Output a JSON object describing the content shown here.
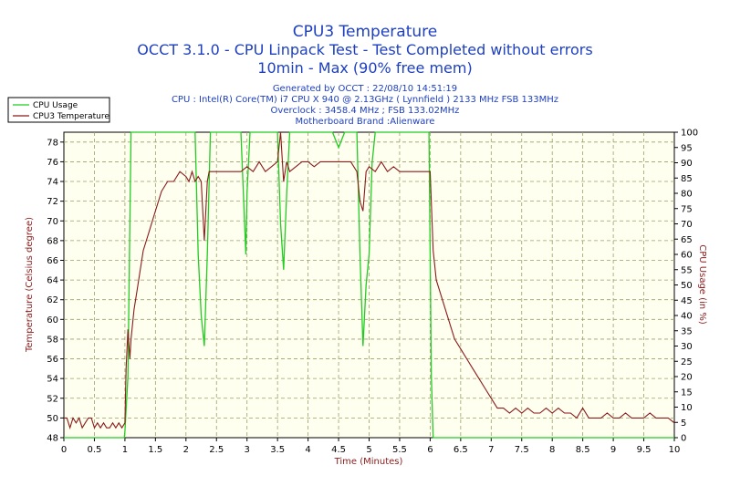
{
  "header": {
    "title": "CPU3 Temperature",
    "subtitle1": "OCCT 3.1.0 - CPU Linpack Test - Test Completed without errors",
    "subtitle2": "10min - Max (90% free mem)"
  },
  "info": {
    "line1": "Generated by OCCT : 22/08/10 14:51:19",
    "line2": "CPU : Intel(R) Core(TM) i7 CPU X 940 @ 2.13GHz ( Lynnfield ) 2133 MHz FSB 133MHz",
    "line3": "Overclock : 3458.4 MHz ; FSB 133.02MHz",
    "line4": "Motherboard Brand :Alienware"
  },
  "legend": {
    "items": [
      {
        "label": "CPU Usage",
        "color": "#22cc22"
      },
      {
        "label": "CPU3 Temperature",
        "color": "#8b1a1a"
      }
    ]
  },
  "colors": {
    "title": "#1d3fc0",
    "plot_bg": "#fffff0",
    "grid": "#9aa06a",
    "temperature": "#8b1a1a",
    "usage": "#22cc22"
  },
  "chart_data": {
    "type": "line",
    "title": "CPU3 Temperature",
    "xlabel": "Time (Minutes)",
    "ylabel": "Temperature (Celsius degree)",
    "y2label": "CPU Usage (in %)",
    "xlim": [
      0,
      10
    ],
    "ylim": [
      48,
      79
    ],
    "y2lim": [
      0,
      100
    ],
    "grid": true,
    "legend_position": "top-left",
    "x_ticks": [
      "0",
      "0.5",
      "1",
      "1.5",
      "2",
      "2.5",
      "3",
      "3.5",
      "4",
      "4.5",
      "5",
      "5.5",
      "6",
      "6.5",
      "7",
      "7.5",
      "8",
      "8.5",
      "9",
      "9.5",
      "10"
    ],
    "y_ticks": [
      "48",
      "50",
      "52",
      "54",
      "56",
      "58",
      "60",
      "62",
      "64",
      "66",
      "68",
      "70",
      "72",
      "74",
      "76",
      "78"
    ],
    "y2_ticks": [
      "0",
      "5",
      "10",
      "15",
      "20",
      "25",
      "30",
      "35",
      "40",
      "45",
      "50",
      "55",
      "60",
      "65",
      "70",
      "75",
      "80",
      "85",
      "90",
      "95",
      "100"
    ],
    "series": [
      {
        "name": "CPU3 Temperature",
        "axis": "left",
        "x": [
          0,
          0.05,
          0.1,
          0.15,
          0.2,
          0.25,
          0.3,
          0.35,
          0.4,
          0.45,
          0.5,
          0.55,
          0.6,
          0.65,
          0.7,
          0.75,
          0.8,
          0.85,
          0.9,
          0.95,
          1.0,
          1.02,
          1.05,
          1.08,
          1.1,
          1.15,
          1.2,
          1.3,
          1.4,
          1.5,
          1.6,
          1.7,
          1.8,
          1.9,
          2.0,
          2.05,
          2.1,
          2.15,
          2.2,
          2.25,
          2.3,
          2.35,
          2.38,
          2.4,
          2.45,
          2.5,
          2.6,
          2.7,
          2.8,
          2.9,
          3.0,
          3.1,
          3.2,
          3.3,
          3.4,
          3.5,
          3.55,
          3.6,
          3.65,
          3.7,
          3.8,
          3.9,
          4.0,
          4.1,
          4.2,
          4.3,
          4.4,
          4.5,
          4.6,
          4.7,
          4.8,
          4.85,
          4.9,
          4.95,
          5.0,
          5.1,
          5.2,
          5.3,
          5.4,
          5.5,
          5.6,
          5.7,
          5.8,
          5.9,
          6.0,
          6.05,
          6.1,
          6.2,
          6.3,
          6.4,
          6.5,
          6.6,
          6.7,
          6.8,
          6.9,
          7.0,
          7.1,
          7.2,
          7.3,
          7.4,
          7.5,
          7.6,
          7.7,
          7.8,
          7.9,
          8.0,
          8.1,
          8.2,
          8.3,
          8.4,
          8.5,
          8.6,
          8.7,
          8.8,
          8.9,
          9.0,
          9.1,
          9.2,
          9.3,
          9.4,
          9.5,
          9.6,
          9.7,
          9.8,
          9.9,
          10.0
        ],
        "values": [
          50,
          50,
          49,
          50,
          49.5,
          50,
          49,
          49.5,
          50,
          50,
          49,
          49.5,
          49,
          49.5,
          49,
          49,
          49.5,
          49,
          49.5,
          49,
          49.5,
          55,
          59,
          56,
          58,
          61,
          63,
          67,
          69,
          71,
          73,
          74,
          74,
          75,
          74.5,
          74,
          75,
          74,
          74.5,
          74,
          68,
          74,
          75,
          75,
          75,
          75,
          75,
          75,
          75,
          75,
          75.5,
          75,
          76,
          75,
          75.5,
          76,
          79,
          74,
          76,
          75,
          75.5,
          76,
          76,
          75.5,
          76,
          76,
          76,
          76,
          76,
          76,
          75,
          72,
          71,
          75,
          75.5,
          75,
          76,
          75,
          75.5,
          75,
          75,
          75,
          75,
          75,
          75,
          67,
          64,
          62,
          60,
          58,
          57,
          56,
          55,
          54,
          53,
          52,
          51,
          51,
          50.5,
          51,
          50.5,
          51,
          50.5,
          50.5,
          51,
          50.5,
          51,
          50.5,
          50.5,
          50,
          51,
          50,
          50,
          50,
          50.5,
          50,
          50,
          50.5,
          50,
          50,
          50,
          50.5,
          50,
          50,
          50,
          49.5
        ]
      },
      {
        "name": "CPU Usage",
        "axis": "right",
        "x": [
          0,
          0.99,
          1.0,
          1.05,
          1.1,
          1.2,
          1.5,
          2.0,
          2.15,
          2.2,
          2.25,
          2.3,
          2.35,
          2.4,
          2.5,
          2.9,
          2.95,
          2.98,
          3.0,
          3.05,
          3.1,
          3.5,
          3.55,
          3.6,
          3.65,
          3.7,
          4.0,
          4.4,
          4.5,
          4.6,
          4.8,
          4.85,
          4.9,
          4.95,
          5.0,
          5.05,
          5.1,
          5.5,
          5.98,
          6.0,
          6.02,
          6.05,
          10.0
        ],
        "values": [
          0,
          0,
          2,
          20,
          100,
          100,
          100,
          100,
          100,
          60,
          40,
          30,
          60,
          100,
          100,
          100,
          75,
          60,
          80,
          100,
          100,
          100,
          70,
          55,
          80,
          100,
          100,
          100,
          95,
          100,
          100,
          60,
          30,
          50,
          60,
          90,
          100,
          100,
          100,
          60,
          20,
          0,
          0
        ]
      }
    ]
  }
}
